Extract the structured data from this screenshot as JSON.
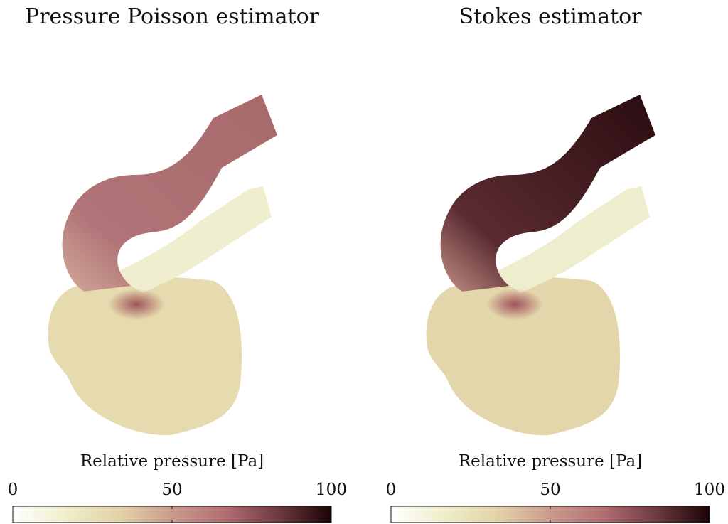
{
  "chart_data": [
    {
      "type": "heatmap",
      "title": "Pressure Poisson estimator",
      "colorbar_label": "Relative pressure [Pa]",
      "clim": [
        0,
        100
      ],
      "cticks": [
        0,
        50,
        100
      ],
      "colormap": [
        "#ffffff",
        "#efeecb",
        "#e3d2a8",
        "#c99a8c",
        "#b26e72",
        "#6e3a40",
        "#1a0406"
      ]
    },
    {
      "type": "heatmap",
      "title": "Stokes estimator",
      "colorbar_label": "Relative pressure [Pa]",
      "clim": [
        0,
        100
      ],
      "cticks": [
        0,
        50,
        100
      ],
      "colormap": [
        "#ffffff",
        "#efeecb",
        "#e3d2a8",
        "#c99a8c",
        "#b26e72",
        "#6e3a40",
        "#1a0406"
      ]
    }
  ]
}
